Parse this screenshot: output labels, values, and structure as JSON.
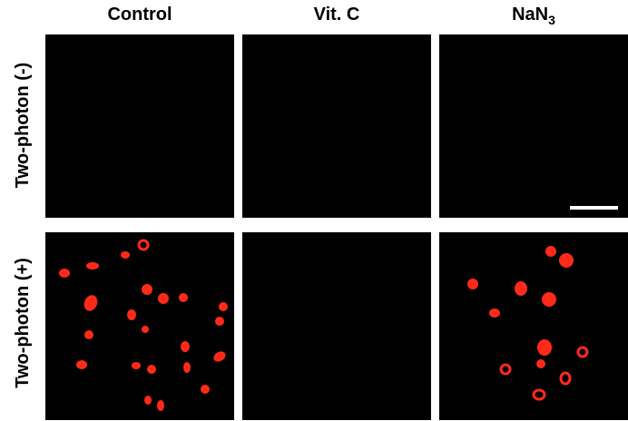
{
  "columns": {
    "control": "Control",
    "vitc": "Vit. C",
    "nan3_base": "NaN",
    "nan3_sub": "3"
  },
  "rows": {
    "off": "Two-photon (-)",
    "on": "Two-photon (+)"
  },
  "colors": {
    "background": "#000000",
    "cell": "#ff2a1a",
    "scalebar": "#ffffff"
  }
}
